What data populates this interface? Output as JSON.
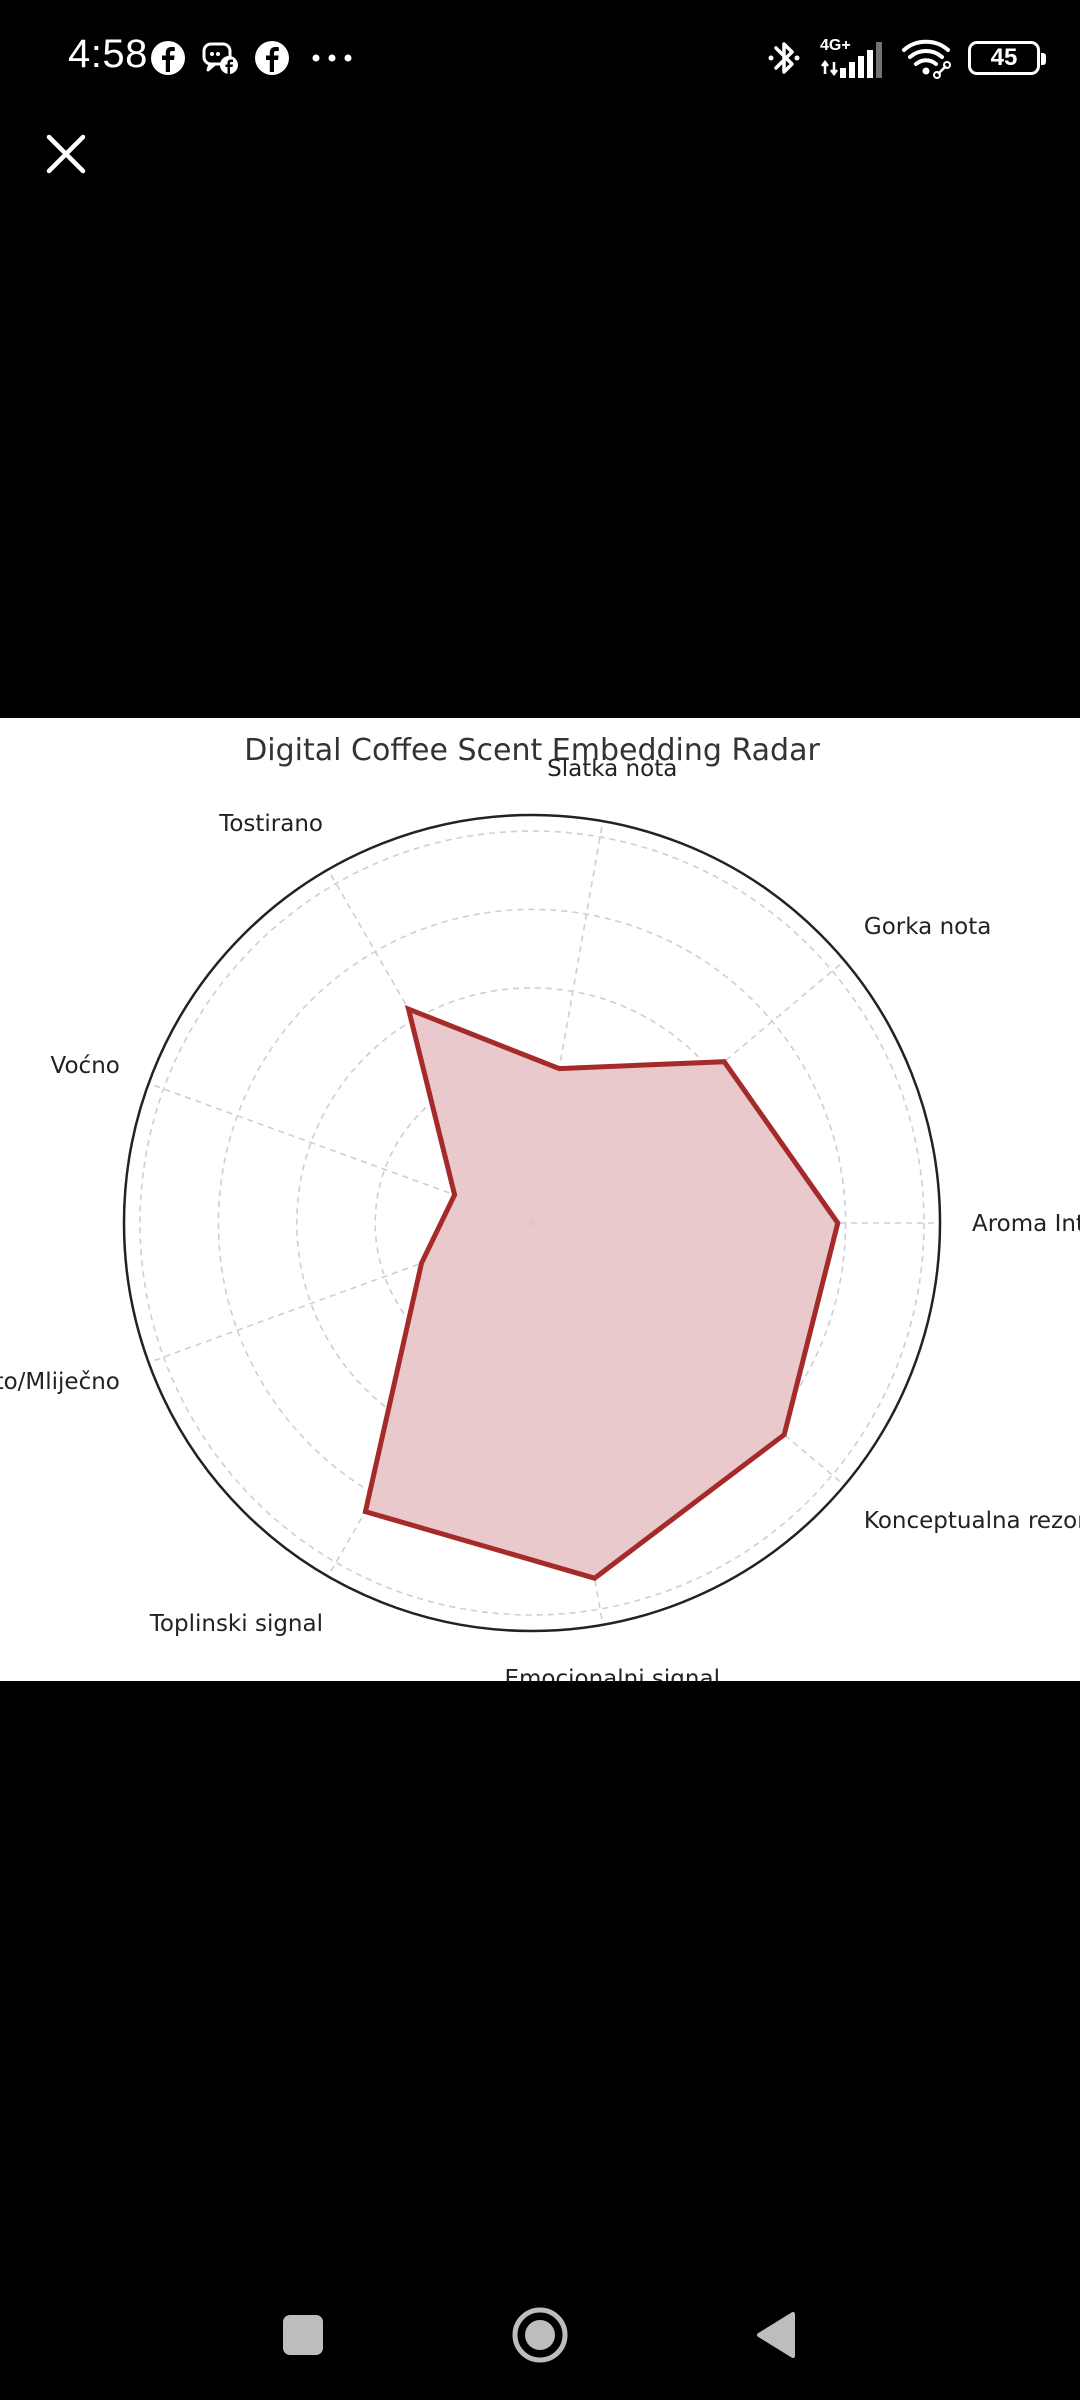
{
  "status_bar": {
    "time": "4:58",
    "network": "4G+",
    "battery": "45"
  },
  "chart_data": {
    "type": "radar",
    "title": "Digital Coffee Scent Embedding Radar",
    "axes": [
      "Aroma Intenzitet",
      "Gorka nota",
      "Slatka nota",
      "Tostirano",
      "Voćno",
      "Kremasto/Mliječno",
      "Toplinski signal",
      "Emocionalni signal",
      "Konceptualna rezonanca"
    ],
    "series": [
      {
        "values": [
          0.78,
          0.64,
          0.4,
          0.63,
          0.21,
          0.3,
          0.85,
          0.92,
          0.84
        ]
      }
    ],
    "rlim": [
      0,
      1
    ],
    "grid": true,
    "line_color": "#a52a2a",
    "fill_color": "#e8c6c8"
  }
}
